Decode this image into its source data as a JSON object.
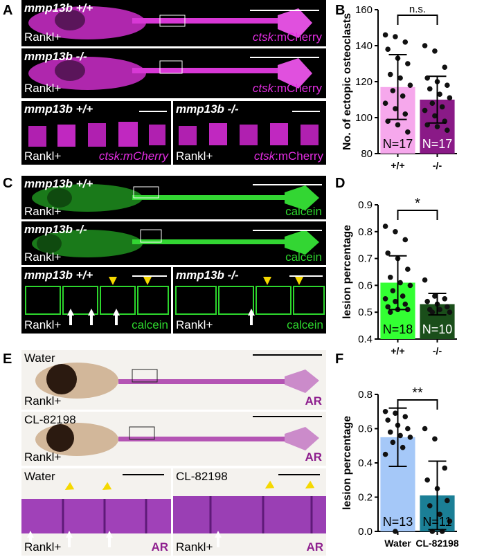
{
  "panels": {
    "A": {
      "letter": "A",
      "img1": {
        "genotype": "mmp13b +/+",
        "treatment": "Rankl+",
        "reporter_italic": "ctsk",
        "reporter_rest": ":mCherry"
      },
      "img2": {
        "genotype": "mmp13b -/-",
        "treatment": "Rankl+",
        "reporter_italic": "ctsk",
        "reporter_rest": ":mCherry"
      },
      "img3": {
        "genotype": "mmp13b +/+",
        "treatment": "Rankl+",
        "reporter": "ctsk:mCherry"
      },
      "img4": {
        "genotype": "mmp13b -/-",
        "treatment": "Rankl+",
        "reporter_italic": "ctsk",
        "reporter_rest": ":mCherry"
      }
    },
    "C": {
      "letter": "C",
      "img1": {
        "genotype": "mmp13b +/+",
        "treatment": "Rankl+",
        "stain": "calcein"
      },
      "img2": {
        "genotype": "mmp13b -/-",
        "treatment": "Rankl+",
        "stain": "calcein"
      },
      "img3": {
        "genotype": "mmp13b +/+",
        "treatment": "Rankl+",
        "stain": "calcein"
      },
      "img4": {
        "genotype": "mmp13b -/-",
        "treatment": "Rankl+",
        "stain": "calcein"
      }
    },
    "E": {
      "letter": "E",
      "img1": {
        "condition": "Water",
        "treatment": "Rankl+",
        "stain": "AR"
      },
      "img2": {
        "condition": "CL-82198",
        "treatment": "Rankl+",
        "stain": "AR"
      },
      "img3": {
        "condition": "Water",
        "treatment": "Rankl+",
        "stain": "AR"
      },
      "img4": {
        "condition": "CL-82198",
        "treatment": "Rankl+",
        "stain": "AR"
      }
    }
  },
  "colors": {
    "magenta": "#e22de0",
    "green": "#2dd62d",
    "purple": "#8e1f8e",
    "yellow": "#f5d800",
    "B_bar1": "#f6a8ec",
    "B_bar2": "#8a1a87",
    "D_bar1": "#33ff33",
    "D_bar2": "#1a4e1a",
    "F_bar1": "#a5c8f8",
    "F_bar2": "#1b7f96"
  },
  "chart_data": [
    {
      "panel": "B",
      "type": "bar",
      "categories": [
        "+/+",
        "-/-"
      ],
      "values": [
        117,
        110
      ],
      "error_sd": [
        18,
        13
      ],
      "n_labels": [
        "N=17",
        "N=17"
      ],
      "ylabel": "No. of ectopic osteoclasts",
      "ylim": [
        80,
        160
      ],
      "yticks": [
        "80",
        "100",
        "120",
        "140",
        "160"
      ],
      "significance": "n.s.",
      "points": [
        [
          146,
          145,
          142,
          138,
          133,
          130,
          124,
          122,
          118,
          115,
          112,
          108,
          105,
          102,
          98,
          96,
          92
        ],
        [
          140,
          137,
          128,
          122,
          120,
          118,
          116,
          113,
          111,
          108,
          106,
          104,
          101,
          98,
          96,
          95,
          93
        ]
      ]
    },
    {
      "panel": "D",
      "type": "bar",
      "categories": [
        "+/+",
        "-/-"
      ],
      "values": [
        0.61,
        0.53
      ],
      "error_sd": [
        0.1,
        0.04
      ],
      "n_labels": [
        "N=18",
        "N=10"
      ],
      "ylabel": "lesion percentage",
      "ylim": [
        0.4,
        0.9
      ],
      "yticks": [
        "0.4",
        "0.5",
        "0.6",
        "0.7",
        "0.8",
        "0.9"
      ],
      "significance": "*",
      "points": [
        [
          0.82,
          0.8,
          0.77,
          0.72,
          0.7,
          0.66,
          0.63,
          0.61,
          0.6,
          0.58,
          0.56,
          0.55,
          0.54,
          0.53,
          0.52,
          0.51,
          0.51,
          0.5
        ],
        [
          0.62,
          0.56,
          0.55,
          0.54,
          0.53,
          0.52,
          0.51,
          0.51,
          0.5,
          0.5
        ]
      ]
    },
    {
      "panel": "F",
      "type": "bar",
      "categories": [
        "Water",
        "CL-82198"
      ],
      "values": [
        0.55,
        0.21
      ],
      "error_sd": [
        0.17,
        0.2
      ],
      "n_labels": [
        "N=13",
        "N=11"
      ],
      "ylabel": "lesion percentage",
      "ylim": [
        0.0,
        0.8
      ],
      "yticks": [
        "0.0",
        "0.2",
        "0.4",
        "0.6",
        "0.8"
      ],
      "significance": "**",
      "points": [
        [
          0.7,
          0.69,
          0.67,
          0.65,
          0.62,
          0.6,
          0.58,
          0.56,
          0.55,
          0.52,
          0.49,
          0.45,
          0.0
        ],
        [
          0.6,
          0.54,
          0.37,
          0.3,
          0.25,
          0.18,
          0.15,
          0.1,
          0.06,
          0.0,
          0.0
        ]
      ]
    }
  ]
}
